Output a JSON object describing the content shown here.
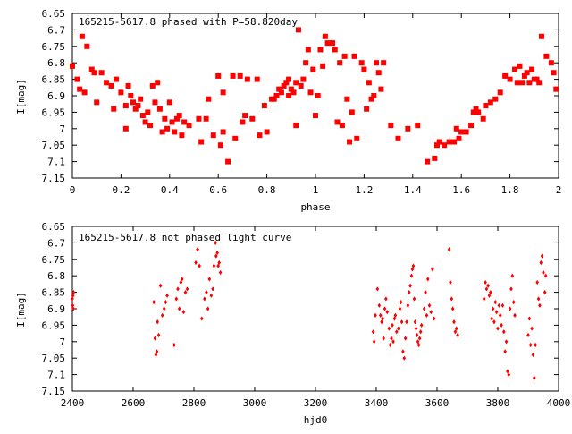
{
  "colors": {
    "points": "#ff0000",
    "axes": "#000000",
    "background": "#ffffff"
  },
  "chart_data": [
    {
      "type": "scatter",
      "title": "165215-5617.8 phased with P=58.820day",
      "xlabel": "phase",
      "ylabel": "I[mag]",
      "xlim": [
        0,
        2
      ],
      "ylim": [
        7.15,
        6.65
      ],
      "y_inverted": true,
      "marker": "filled-square",
      "x_ticks": [
        "0",
        "0.2",
        "0.4",
        "0.6",
        "0.8",
        "1",
        "1.2",
        "1.4",
        "1.6",
        "1.8",
        "2"
      ],
      "y_ticks": [
        "6.65",
        "6.7",
        "6.75",
        "6.8",
        "6.85",
        "6.9",
        "6.95",
        "7",
        "7.05",
        "7.1",
        "7.15"
      ],
      "points": [
        [
          0.0,
          6.81
        ],
        [
          0.02,
          6.85
        ],
        [
          0.03,
          6.88
        ],
        [
          0.04,
          6.72
        ],
        [
          0.05,
          6.89
        ],
        [
          0.06,
          6.75
        ],
        [
          0.08,
          6.82
        ],
        [
          0.09,
          6.83
        ],
        [
          0.1,
          6.92
        ],
        [
          0.12,
          6.83
        ],
        [
          0.14,
          6.86
        ],
        [
          0.16,
          6.87
        ],
        [
          0.17,
          6.94
        ],
        [
          0.18,
          6.85
        ],
        [
          0.2,
          6.89
        ],
        [
          0.22,
          6.93
        ],
        [
          0.22,
          7.0
        ],
        [
          0.23,
          6.87
        ],
        [
          0.24,
          6.9
        ],
        [
          0.25,
          6.92
        ],
        [
          0.26,
          6.94
        ],
        [
          0.27,
          6.93
        ],
        [
          0.28,
          6.91
        ],
        [
          0.29,
          6.96
        ],
        [
          0.3,
          6.98
        ],
        [
          0.31,
          6.95
        ],
        [
          0.32,
          6.99
        ],
        [
          0.33,
          6.87
        ],
        [
          0.34,
          6.92
        ],
        [
          0.35,
          6.86
        ],
        [
          0.36,
          6.94
        ],
        [
          0.37,
          7.01
        ],
        [
          0.38,
          6.97
        ],
        [
          0.39,
          7.0
        ],
        [
          0.4,
          6.92
        ],
        [
          0.41,
          6.98
        ],
        [
          0.42,
          7.01
        ],
        [
          0.43,
          6.97
        ],
        [
          0.44,
          6.96
        ],
        [
          0.45,
          7.02
        ],
        [
          0.46,
          6.98
        ],
        [
          0.48,
          6.99
        ],
        [
          0.52,
          6.97
        ],
        [
          0.53,
          7.04
        ],
        [
          0.55,
          6.97
        ],
        [
          0.56,
          6.91
        ],
        [
          0.58,
          7.02
        ],
        [
          0.6,
          6.84
        ],
        [
          0.61,
          7.05
        ],
        [
          0.62,
          6.89
        ],
        [
          0.62,
          7.01
        ],
        [
          0.64,
          7.1
        ],
        [
          0.66,
          6.84
        ],
        [
          0.67,
          7.03
        ],
        [
          0.69,
          6.84
        ],
        [
          0.7,
          6.98
        ],
        [
          0.71,
          6.96
        ],
        [
          0.72,
          6.85
        ],
        [
          0.74,
          6.97
        ],
        [
          0.76,
          6.85
        ],
        [
          0.77,
          7.02
        ],
        [
          0.79,
          6.93
        ],
        [
          0.8,
          7.01
        ],
        [
          0.82,
          6.91
        ],
        [
          0.83,
          6.91
        ],
        [
          0.84,
          6.9
        ],
        [
          0.85,
          6.88
        ],
        [
          0.86,
          6.89
        ],
        [
          0.87,
          6.87
        ],
        [
          0.88,
          6.86
        ],
        [
          0.89,
          6.85
        ],
        [
          0.89,
          6.9
        ],
        [
          0.9,
          6.88
        ],
        [
          0.91,
          6.89
        ],
        [
          0.92,
          6.86
        ],
        [
          0.92,
          6.99
        ],
        [
          0.93,
          6.7
        ],
        [
          0.94,
          6.87
        ],
        [
          0.95,
          6.85
        ],
        [
          0.96,
          6.8
        ],
        [
          0.97,
          6.76
        ],
        [
          0.98,
          6.89
        ],
        [
          0.99,
          6.82
        ],
        [
          1.0,
          6.96
        ],
        [
          1.01,
          6.9
        ],
        [
          1.02,
          6.76
        ],
        [
          1.03,
          6.81
        ],
        [
          1.04,
          6.72
        ],
        [
          1.05,
          6.74
        ],
        [
          1.07,
          6.74
        ],
        [
          1.08,
          6.76
        ],
        [
          1.09,
          6.98
        ],
        [
          1.1,
          6.8
        ],
        [
          1.11,
          6.99
        ],
        [
          1.12,
          6.78
        ],
        [
          1.13,
          6.91
        ],
        [
          1.14,
          7.04
        ],
        [
          1.15,
          6.95
        ],
        [
          1.16,
          6.78
        ],
        [
          1.17,
          7.03
        ],
        [
          1.19,
          6.8
        ],
        [
          1.2,
          6.82
        ],
        [
          1.21,
          6.94
        ],
        [
          1.22,
          6.86
        ],
        [
          1.23,
          6.91
        ],
        [
          1.24,
          6.9
        ],
        [
          1.25,
          6.8
        ],
        [
          1.26,
          6.83
        ],
        [
          1.27,
          6.88
        ],
        [
          1.28,
          6.8
        ],
        [
          1.31,
          6.99
        ],
        [
          1.34,
          7.03
        ],
        [
          1.38,
          7.0
        ],
        [
          1.42,
          6.99
        ],
        [
          1.46,
          7.1
        ],
        [
          1.49,
          7.09
        ],
        [
          1.5,
          7.05
        ],
        [
          1.51,
          7.04
        ],
        [
          1.53,
          7.05
        ],
        [
          1.55,
          7.04
        ],
        [
          1.57,
          7.04
        ],
        [
          1.58,
          7.0
        ],
        [
          1.59,
          7.03
        ],
        [
          1.6,
          7.01
        ],
        [
          1.62,
          7.01
        ],
        [
          1.64,
          6.99
        ],
        [
          1.65,
          6.95
        ],
        [
          1.66,
          6.94
        ],
        [
          1.67,
          6.95
        ],
        [
          1.69,
          6.97
        ],
        [
          1.7,
          6.93
        ],
        [
          1.72,
          6.92
        ],
        [
          1.74,
          6.91
        ],
        [
          1.76,
          6.89
        ],
        [
          1.78,
          6.84
        ],
        [
          1.8,
          6.85
        ],
        [
          1.82,
          6.82
        ],
        [
          1.83,
          6.86
        ],
        [
          1.84,
          6.81
        ],
        [
          1.85,
          6.86
        ],
        [
          1.86,
          6.84
        ],
        [
          1.87,
          6.83
        ],
        [
          1.88,
          6.86
        ],
        [
          1.89,
          6.82
        ],
        [
          1.9,
          6.85
        ],
        [
          1.91,
          6.85
        ],
        [
          1.92,
          6.86
        ],
        [
          1.93,
          6.72
        ],
        [
          1.95,
          6.78
        ],
        [
          1.97,
          6.8
        ],
        [
          1.98,
          6.83
        ],
        [
          1.99,
          6.88
        ]
      ]
    },
    {
      "type": "scatter",
      "title": "165215-5617.8 not phased light curve",
      "xlabel": "hjd0",
      "ylabel": "I[mag]",
      "xlim": [
        2400,
        4000
      ],
      "ylim": [
        7.15,
        6.65
      ],
      "y_inverted": true,
      "marker": "small-diamond",
      "x_ticks": [
        "2400",
        "2600",
        "2800",
        "3000",
        "3200",
        "3400",
        "3600",
        "3800",
        "4000"
      ],
      "y_ticks": [
        "6.65",
        "6.7",
        "6.75",
        "6.8",
        "6.85",
        "6.9",
        "6.95",
        "7",
        "7.05",
        "7.1",
        "7.15"
      ],
      "points": [
        [
          2400,
          6.87
        ],
        [
          2401,
          6.89
        ],
        [
          2402,
          6.86
        ],
        [
          2403,
          6.9
        ],
        [
          2404,
          6.85
        ],
        [
          2668,
          6.88
        ],
        [
          2672,
          6.99
        ],
        [
          2675,
          7.04
        ],
        [
          2678,
          7.03
        ],
        [
          2680,
          6.94
        ],
        [
          2684,
          6.98
        ],
        [
          2690,
          6.83
        ],
        [
          2696,
          6.92
        ],
        [
          2702,
          6.9
        ],
        [
          2707,
          6.88
        ],
        [
          2712,
          6.86
        ],
        [
          2735,
          7.01
        ],
        [
          2742,
          6.87
        ],
        [
          2747,
          6.84
        ],
        [
          2752,
          6.9
        ],
        [
          2757,
          6.82
        ],
        [
          2761,
          6.81
        ],
        [
          2766,
          6.91
        ],
        [
          2772,
          6.85
        ],
        [
          2778,
          6.84
        ],
        [
          2806,
          6.76
        ],
        [
          2812,
          6.72
        ],
        [
          2818,
          6.77
        ],
        [
          2826,
          6.93
        ],
        [
          2835,
          6.87
        ],
        [
          2841,
          6.85
        ],
        [
          2846,
          6.9
        ],
        [
          2851,
          6.81
        ],
        [
          2857,
          6.86
        ],
        [
          2862,
          6.84
        ],
        [
          2866,
          6.77
        ],
        [
          2871,
          6.7
        ],
        [
          2873,
          6.74
        ],
        [
          2877,
          6.73
        ],
        [
          2880,
          6.77
        ],
        [
          2883,
          6.76
        ],
        [
          2887,
          6.79
        ],
        [
          3390,
          6.97
        ],
        [
          3393,
          7.0
        ],
        [
          3397,
          6.92
        ],
        [
          3404,
          6.84
        ],
        [
          3410,
          6.89
        ],
        [
          3414,
          6.92
        ],
        [
          3418,
          6.94
        ],
        [
          3421,
          6.93
        ],
        [
          3424,
          6.99
        ],
        [
          3428,
          6.9
        ],
        [
          3432,
          6.87
        ],
        [
          3436,
          6.91
        ],
        [
          3442,
          6.96
        ],
        [
          3446,
          7.01
        ],
        [
          3450,
          6.99
        ],
        [
          3453,
          6.95
        ],
        [
          3456,
          7.0
        ],
        [
          3460,
          6.93
        ],
        [
          3463,
          6.92
        ],
        [
          3467,
          6.97
        ],
        [
          3473,
          6.96
        ],
        [
          3478,
          6.9
        ],
        [
          3481,
          6.88
        ],
        [
          3484,
          6.94
        ],
        [
          3488,
          7.03
        ],
        [
          3492,
          7.05
        ],
        [
          3496,
          6.99
        ],
        [
          3500,
          6.94
        ],
        [
          3504,
          6.89
        ],
        [
          3508,
          6.85
        ],
        [
          3512,
          6.83
        ],
        [
          3516,
          6.8
        ],
        [
          3519,
          6.78
        ],
        [
          3522,
          6.77
        ],
        [
          3525,
          6.87
        ],
        [
          3528,
          6.94
        ],
        [
          3531,
          6.96
        ],
        [
          3534,
          6.98
        ],
        [
          3537,
          7.0
        ],
        [
          3540,
          7.01
        ],
        [
          3543,
          6.99
        ],
        [
          3546,
          6.97
        ],
        [
          3549,
          6.95
        ],
        [
          3558,
          6.9
        ],
        [
          3562,
          6.85
        ],
        [
          3566,
          6.92
        ],
        [
          3570,
          6.81
        ],
        [
          3575,
          6.89
        ],
        [
          3580,
          6.91
        ],
        [
          3585,
          6.78
        ],
        [
          3590,
          6.93
        ],
        [
          3640,
          6.72
        ],
        [
          3644,
          6.82
        ],
        [
          3648,
          6.87
        ],
        [
          3652,
          6.9
        ],
        [
          3656,
          6.94
        ],
        [
          3660,
          6.97
        ],
        [
          3664,
          6.96
        ],
        [
          3668,
          6.98
        ],
        [
          3755,
          6.87
        ],
        [
          3759,
          6.82
        ],
        [
          3763,
          6.84
        ],
        [
          3768,
          6.83
        ],
        [
          3772,
          6.86
        ],
        [
          3776,
          6.85
        ],
        [
          3780,
          6.93
        ],
        [
          3784,
          6.9
        ],
        [
          3788,
          6.94
        ],
        [
          3792,
          6.88
        ],
        [
          3796,
          6.91
        ],
        [
          3800,
          6.96
        ],
        [
          3804,
          6.89
        ],
        [
          3808,
          6.92
        ],
        [
          3812,
          6.95
        ],
        [
          3816,
          6.89
        ],
        [
          3820,
          6.97
        ],
        [
          3824,
          7.03
        ],
        [
          3828,
          7.0
        ],
        [
          3832,
          7.09
        ],
        [
          3836,
          7.1
        ],
        [
          3840,
          6.9
        ],
        [
          3844,
          6.84
        ],
        [
          3848,
          6.8
        ],
        [
          3852,
          6.88
        ],
        [
          3856,
          6.92
        ],
        [
          3900,
          6.98
        ],
        [
          3904,
          6.93
        ],
        [
          3908,
          7.01
        ],
        [
          3912,
          6.96
        ],
        [
          3916,
          7.04
        ],
        [
          3920,
          7.11
        ],
        [
          3924,
          7.01
        ],
        [
          3930,
          6.82
        ],
        [
          3934,
          6.87
        ],
        [
          3938,
          6.89
        ],
        [
          3942,
          6.76
        ],
        [
          3946,
          6.74
        ],
        [
          3950,
          6.79
        ],
        [
          3955,
          6.85
        ],
        [
          3958,
          6.8
        ]
      ]
    }
  ]
}
